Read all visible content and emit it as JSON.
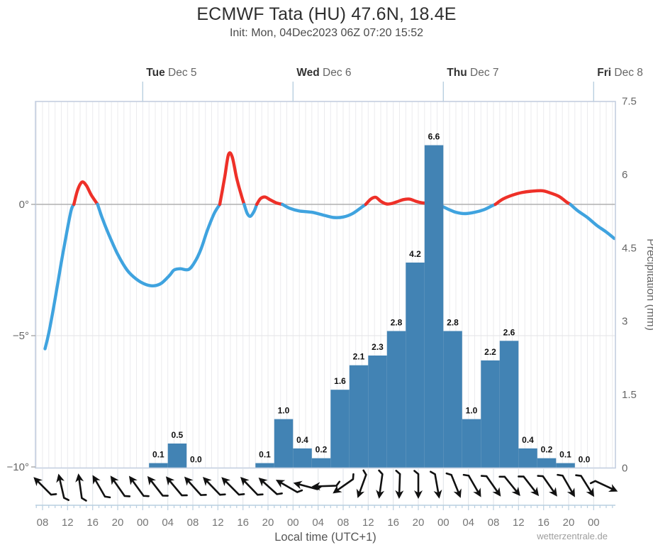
{
  "header": {
    "title": "ECMWF Tata (HU) 47.6N, 18.4E",
    "subtitle": "Init: Mon, 04Dec2023 06Z 07:20 15:52"
  },
  "footer": {
    "watermark": "wetterzentrale.de"
  },
  "chart_data": {
    "type": "meteogram (smoothed temperature line + precipitation bars + wind arrows)",
    "time_origin": "Mon 04 Dec 2023 08:00 local, t in hours",
    "x_axis": {
      "title": "Local time (UTC+1)",
      "hour_labels": [
        {
          "t": 0,
          "label": "08"
        },
        {
          "t": 4,
          "label": "12"
        },
        {
          "t": 8,
          "label": "16"
        },
        {
          "t": 12,
          "label": "20"
        },
        {
          "t": 16,
          "label": "00"
        },
        {
          "t": 20,
          "label": "04"
        },
        {
          "t": 24,
          "label": "08"
        },
        {
          "t": 28,
          "label": "12"
        },
        {
          "t": 32,
          "label": "16"
        },
        {
          "t": 36,
          "label": "20"
        },
        {
          "t": 40,
          "label": "00"
        },
        {
          "t": 44,
          "label": "04"
        },
        {
          "t": 48,
          "label": "08"
        },
        {
          "t": 52,
          "label": "12"
        },
        {
          "t": 56,
          "label": "16"
        },
        {
          "t": 60,
          "label": "20"
        },
        {
          "t": 64,
          "label": "00"
        },
        {
          "t": 68,
          "label": "04"
        },
        {
          "t": 72,
          "label": "08"
        },
        {
          "t": 76,
          "label": "12"
        },
        {
          "t": 80,
          "label": "16"
        },
        {
          "t": 84,
          "label": "20"
        },
        {
          "t": 88,
          "label": "00"
        }
      ],
      "day_labels": [
        {
          "t": 16,
          "day": "Tue",
          "date": " Dec 5"
        },
        {
          "t": 40,
          "day": "Wed",
          "date": " Dec 6"
        },
        {
          "t": 64,
          "day": "Thu",
          "date": " Dec 7"
        },
        {
          "t": 88,
          "day": "Fri",
          "date": " Dec 8"
        }
      ]
    },
    "temp_axis": {
      "unit": "°C",
      "range": [
        -10,
        3.9
      ],
      "ticks": [
        {
          "v": 0,
          "label": "0°"
        },
        {
          "v": -5,
          "label": "−5°"
        },
        {
          "v": -10,
          "label": "−10°"
        }
      ]
    },
    "precip_axis": {
      "title": "Precipitation (mm)",
      "range": [
        0,
        7.5
      ],
      "ticks": [
        {
          "v": 7.5,
          "label": "7.5"
        },
        {
          "v": 6,
          "label": "6"
        },
        {
          "v": 4.5,
          "label": "4.5"
        },
        {
          "v": 3,
          "label": "3"
        },
        {
          "v": 1.5,
          "label": "1.5"
        },
        {
          "v": 0,
          "label": "0"
        }
      ]
    },
    "precip_bars": {
      "duration_hours": 3,
      "bars": [
        {
          "t": 17,
          "value": 0.1,
          "label": "0.1"
        },
        {
          "t": 20,
          "value": 0.5,
          "label": "0.5"
        },
        {
          "t": 23,
          "value": 0.0,
          "label": "0.0"
        },
        {
          "t": 34,
          "value": 0.1,
          "label": "0.1"
        },
        {
          "t": 37,
          "value": 1.0,
          "label": "1.0"
        },
        {
          "t": 40,
          "value": 0.4,
          "label": "0.4"
        },
        {
          "t": 43,
          "value": 0.2,
          "label": "0.2"
        },
        {
          "t": 46,
          "value": 1.6,
          "label": "1.6"
        },
        {
          "t": 49,
          "value": 2.1,
          "label": "2.1"
        },
        {
          "t": 52,
          "value": 2.3,
          "label": "2.3"
        },
        {
          "t": 55,
          "value": 2.8,
          "label": "2.8"
        },
        {
          "t": 58,
          "value": 4.2,
          "label": "4.2"
        },
        {
          "t": 61,
          "value": 6.6,
          "label": "6.6"
        },
        {
          "t": 64,
          "value": 2.8,
          "label": "2.8"
        },
        {
          "t": 67,
          "value": 1.0,
          "label": "1.0"
        },
        {
          "t": 70,
          "value": 2.2,
          "label": "2.2"
        },
        {
          "t": 73,
          "value": 2.6,
          "label": "2.6"
        },
        {
          "t": 76,
          "value": 0.4,
          "label": "0.4"
        },
        {
          "t": 79,
          "value": 0.2,
          "label": "0.2"
        },
        {
          "t": 82,
          "value": 0.1,
          "label": "0.1"
        },
        {
          "t": 85,
          "value": 0.0,
          "label": "0.0"
        }
      ]
    },
    "temp_series": {
      "name": "2m temperature",
      "segments": [
        {
          "color": "blue",
          "points": [
            [
              0.4,
              -5.5
            ],
            [
              1,
              -4.9
            ],
            [
              2,
              -3.6
            ],
            [
              3,
              -2.2
            ],
            [
              4,
              -0.9
            ],
            [
              4.6,
              -0.2
            ],
            [
              5.0,
              0
            ]
          ]
        },
        {
          "color": "red",
          "points": [
            [
              5.0,
              0
            ],
            [
              5.6,
              0.55
            ],
            [
              6.3,
              0.85
            ],
            [
              7.0,
              0.72
            ],
            [
              7.8,
              0.35
            ],
            [
              8.8,
              0
            ]
          ]
        },
        {
          "color": "blue",
          "points": [
            [
              8.8,
              0
            ],
            [
              9.5,
              -0.5
            ],
            [
              10.5,
              -1.1
            ],
            [
              12,
              -1.9
            ],
            [
              13.5,
              -2.5
            ],
            [
              15,
              -2.85
            ],
            [
              16.5,
              -3.05
            ],
            [
              17.8,
              -3.1
            ],
            [
              19,
              -3.0
            ],
            [
              20.3,
              -2.7
            ],
            [
              21.0,
              -2.5
            ],
            [
              22,
              -2.45
            ],
            [
              23.3,
              -2.48
            ],
            [
              24.3,
              -2.2
            ],
            [
              25.3,
              -1.7
            ],
            [
              26.3,
              -1.0
            ],
            [
              27.4,
              -0.35
            ],
            [
              28.3,
              0
            ]
          ]
        },
        {
          "color": "red",
          "points": [
            [
              28.3,
              0
            ],
            [
              29.1,
              1.05
            ],
            [
              29.7,
              1.9
            ],
            [
              30.3,
              1.8
            ],
            [
              31,
              1.0
            ],
            [
              31.8,
              0.3
            ],
            [
              32.2,
              0
            ]
          ]
        },
        {
          "color": "blue",
          "points": [
            [
              32.2,
              0
            ],
            [
              32.7,
              -0.35
            ],
            [
              33.2,
              -0.45
            ],
            [
              33.8,
              -0.25
            ],
            [
              34.2,
              0
            ]
          ]
        },
        {
          "color": "red",
          "points": [
            [
              34.2,
              0
            ],
            [
              34.8,
              0.22
            ],
            [
              35.5,
              0.28
            ],
            [
              36.3,
              0.18
            ],
            [
              37.3,
              0.06
            ],
            [
              38.3,
              0
            ]
          ]
        },
        {
          "color": "blue",
          "points": [
            [
              38.3,
              0
            ],
            [
              39.5,
              -0.15
            ],
            [
              41,
              -0.25
            ],
            [
              43,
              -0.3
            ],
            [
              45,
              -0.42
            ],
            [
              46.5,
              -0.5
            ],
            [
              48,
              -0.48
            ],
            [
              49.5,
              -0.35
            ],
            [
              51,
              -0.1
            ],
            [
              51.6,
              0
            ]
          ]
        },
        {
          "color": "red",
          "points": [
            [
              51.6,
              0
            ],
            [
              52.4,
              0.2
            ],
            [
              53.2,
              0.27
            ],
            [
              54,
              0.12
            ],
            [
              54.9,
              0.02
            ],
            [
              55.7,
              0.03
            ],
            [
              56.6,
              0.1
            ],
            [
              57.6,
              0.18
            ],
            [
              58.6,
              0.2
            ],
            [
              59.6,
              0.12
            ],
            [
              60.6,
              0.06
            ],
            [
              61.6,
              0.04
            ],
            [
              62.4,
              0.02
            ],
            [
              63.2,
              0
            ]
          ]
        },
        {
          "color": "blue",
          "points": [
            [
              63.2,
              0
            ],
            [
              64.5,
              -0.15
            ],
            [
              66,
              -0.3
            ],
            [
              67.5,
              -0.35
            ],
            [
              69,
              -0.3
            ],
            [
              70.5,
              -0.2
            ],
            [
              71.8,
              -0.05
            ],
            [
              72.3,
              0
            ]
          ]
        },
        {
          "color": "red",
          "points": [
            [
              72.3,
              0
            ],
            [
              73.5,
              0.2
            ],
            [
              75,
              0.35
            ],
            [
              76.5,
              0.45
            ],
            [
              78,
              0.5
            ],
            [
              79.8,
              0.52
            ],
            [
              81,
              0.44
            ],
            [
              82.5,
              0.3
            ],
            [
              83.6,
              0.1
            ],
            [
              84.3,
              0
            ]
          ]
        },
        {
          "color": "blue",
          "points": [
            [
              84.3,
              0
            ],
            [
              85.5,
              -0.25
            ],
            [
              87,
              -0.5
            ],
            [
              88.5,
              -0.8
            ],
            [
              90,
              -1.05
            ],
            [
              91.3,
              -1.3
            ]
          ]
        }
      ]
    },
    "wind_arrows": [
      {
        "t": 0,
        "dir_deg": 315
      },
      {
        "t": 3,
        "dir_deg": 347
      },
      {
        "t": 6,
        "dir_deg": 352
      },
      {
        "t": 9,
        "dir_deg": 330
      },
      {
        "t": 12,
        "dir_deg": 325
      },
      {
        "t": 15,
        "dir_deg": 324
      },
      {
        "t": 18,
        "dir_deg": 322
      },
      {
        "t": 21,
        "dir_deg": 320
      },
      {
        "t": 24,
        "dir_deg": 318
      },
      {
        "t": 27,
        "dir_deg": 316
      },
      {
        "t": 30,
        "dir_deg": 315
      },
      {
        "t": 33,
        "dir_deg": 316
      },
      {
        "t": 36,
        "dir_deg": 312
      },
      {
        "t": 39,
        "dir_deg": 300
      },
      {
        "t": 42,
        "dir_deg": 285
      },
      {
        "t": 45,
        "dir_deg": 268
      },
      {
        "t": 48,
        "dir_deg": 235
      },
      {
        "t": 51,
        "dir_deg": 200
      },
      {
        "t": 54,
        "dir_deg": 188
      },
      {
        "t": 57,
        "dir_deg": 182
      },
      {
        "t": 60,
        "dir_deg": 180
      },
      {
        "t": 63,
        "dir_deg": 170
      },
      {
        "t": 66,
        "dir_deg": 158
      },
      {
        "t": 69,
        "dir_deg": 150
      },
      {
        "t": 72,
        "dir_deg": 145
      },
      {
        "t": 75,
        "dir_deg": 141
      },
      {
        "t": 78,
        "dir_deg": 142
      },
      {
        "t": 81,
        "dir_deg": 145
      },
      {
        "t": 84,
        "dir_deg": 150
      },
      {
        "t": 87,
        "dir_deg": 148
      },
      {
        "t": 90,
        "dir_deg": 115
      }
    ],
    "colors": {
      "temp_below_zero": "#3fa3df",
      "temp_above_zero": "#ee3028",
      "bar_fill": "#4283b4",
      "grid_minor": "#ebebee",
      "grid_neg5": "#e3e3e6",
      "zero_line": "#b0b0b0",
      "plot_border": "#c4cfe0",
      "axis_blue": "#b9cfe0",
      "text_dark": "#333333",
      "text_mid": "#666666",
      "bar_label": "#111111",
      "arrow": "#111111"
    }
  }
}
